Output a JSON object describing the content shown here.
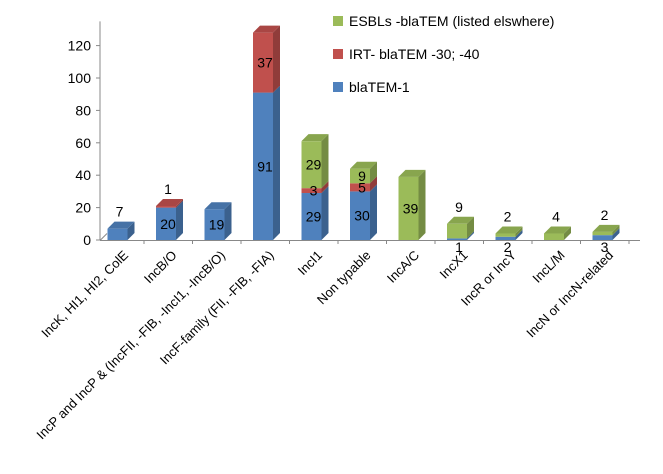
{
  "chart_data": {
    "type": "bar",
    "stacked": true,
    "three_d": true,
    "categories": [
      "IncK, HI1, HI2, ColE",
      "IncB/O",
      "IncP and IncP & (IncFII, -FIB, -IncI1, -IncB/O)",
      "IncF-family (FII, -FIB, -FIA)",
      "IncI1",
      "Non typable",
      "IncA/C",
      "IncX1",
      "IncR or IncY",
      "IncL/M",
      "IncN or IncN-related"
    ],
    "series": [
      {
        "name": "blaTEM-1",
        "color": "#4F81BD",
        "values": [
          7,
          20,
          19,
          91,
          29,
          30,
          0,
          1,
          2,
          0,
          3
        ]
      },
      {
        "name": "IRT- blaTEM -30; -40",
        "color": "#C0504D",
        "values": [
          0,
          1,
          0,
          37,
          3,
          5,
          0,
          0,
          0,
          0,
          0
        ]
      },
      {
        "name": "ESBLs -blaTEM (listed elswhere)",
        "color": "#9BBB59",
        "values": [
          0,
          0,
          0,
          0,
          29,
          9,
          39,
          9,
          2,
          4,
          2
        ]
      }
    ],
    "data_labels": [
      {
        "category": 0,
        "series": 0,
        "text": "7",
        "pos": "above"
      },
      {
        "category": 1,
        "series": 0,
        "text": "20",
        "pos": "inside"
      },
      {
        "category": 1,
        "series": 1,
        "text": "1",
        "pos": "above"
      },
      {
        "category": 2,
        "series": 0,
        "text": "19",
        "pos": "inside"
      },
      {
        "category": 3,
        "series": 0,
        "text": "91",
        "pos": "inside"
      },
      {
        "category": 3,
        "series": 1,
        "text": "37",
        "pos": "inside"
      },
      {
        "category": 4,
        "series": 0,
        "text": "29",
        "pos": "inside"
      },
      {
        "category": 4,
        "series": 1,
        "text": "3",
        "pos": "inside"
      },
      {
        "category": 4,
        "series": 2,
        "text": "29",
        "pos": "inside"
      },
      {
        "category": 5,
        "series": 0,
        "text": "30",
        "pos": "inside"
      },
      {
        "category": 5,
        "series": 1,
        "text": "5",
        "pos": "inside"
      },
      {
        "category": 5,
        "series": 2,
        "text": "9",
        "pos": "inside"
      },
      {
        "category": 6,
        "series": 2,
        "text": "39",
        "pos": "inside"
      },
      {
        "category": 7,
        "series": 0,
        "text": "1",
        "pos": "below"
      },
      {
        "category": 7,
        "series": 2,
        "text": "9",
        "pos": "above"
      },
      {
        "category": 8,
        "series": 0,
        "text": "2",
        "pos": "below"
      },
      {
        "category": 8,
        "series": 2,
        "text": "2",
        "pos": "above"
      },
      {
        "category": 9,
        "series": 2,
        "text": "4",
        "pos": "above"
      },
      {
        "category": 10,
        "series": 0,
        "text": "3",
        "pos": "below"
      },
      {
        "category": 10,
        "series": 2,
        "text": "2",
        "pos": "above"
      }
    ],
    "ylim": [
      0,
      130
    ],
    "yticks": [
      0,
      20,
      40,
      60,
      80,
      100,
      120
    ],
    "legend_position": "top-right",
    "grid": false,
    "title": "",
    "xlabel": "",
    "ylabel": ""
  }
}
